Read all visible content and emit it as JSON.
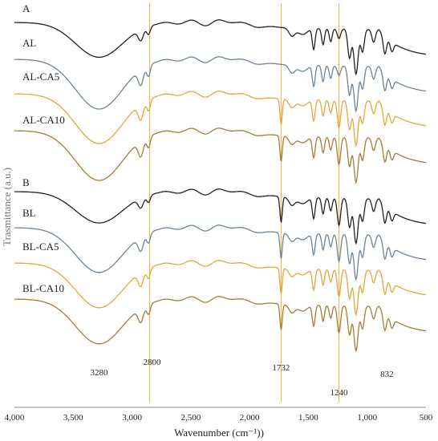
{
  "chart_data": {
    "type": "line",
    "title": "",
    "xlabel": "Wavenumber (cm⁻¹))",
    "ylabel": "Trasmittance (a.u.)",
    "xlim": [
      4000,
      500
    ],
    "x_reversed": true,
    "xticks": [
      "4,000",
      "3,500",
      "3,000",
      "2,500",
      "2,000",
      "1,500",
      "1,000",
      "500"
    ],
    "xtick_values": [
      4000,
      3500,
      3000,
      2500,
      2000,
      1500,
      1000,
      500
    ],
    "grid": false,
    "legend": "none",
    "panel_labels": [
      {
        "text": "A",
        "before_series": "AL"
      },
      {
        "text": "B",
        "before_series": "BL"
      }
    ],
    "reference_lines": [
      {
        "x": 2850,
        "color": "#E6B84A"
      },
      {
        "x": 1732,
        "color": "#E6B84A"
      },
      {
        "x": 1240,
        "color": "#E6B84A"
      }
    ],
    "annotations": [
      {
        "text": "3280",
        "x": 3280
      },
      {
        "text": "2800",
        "x": 2830
      },
      {
        "text": "1732",
        "x": 1732
      },
      {
        "text": "1240",
        "x": 1240
      },
      {
        "text": "832",
        "x": 832
      }
    ],
    "series": [
      {
        "name": "A",
        "color": "#222222",
        "family": "A",
        "variant": 0
      },
      {
        "name": "AL",
        "color": "#6E8494",
        "family": "A",
        "variant": 1
      },
      {
        "name": "AL-CA5",
        "color": "#E3A73C",
        "family": "A",
        "variant": 2
      },
      {
        "name": "AL-CA10",
        "color": "#A67C37",
        "family": "A",
        "variant": 3
      },
      {
        "name": "B",
        "color": "#222222",
        "family": "B",
        "variant": 0
      },
      {
        "name": "BL",
        "color": "#6E8494",
        "family": "B",
        "variant": 1
      },
      {
        "name": "BL-CA5",
        "color": "#E3A73C",
        "family": "B",
        "variant": 2
      },
      {
        "name": "BL-CA10",
        "color": "#A67C37",
        "family": "B",
        "variant": 3
      }
    ]
  }
}
